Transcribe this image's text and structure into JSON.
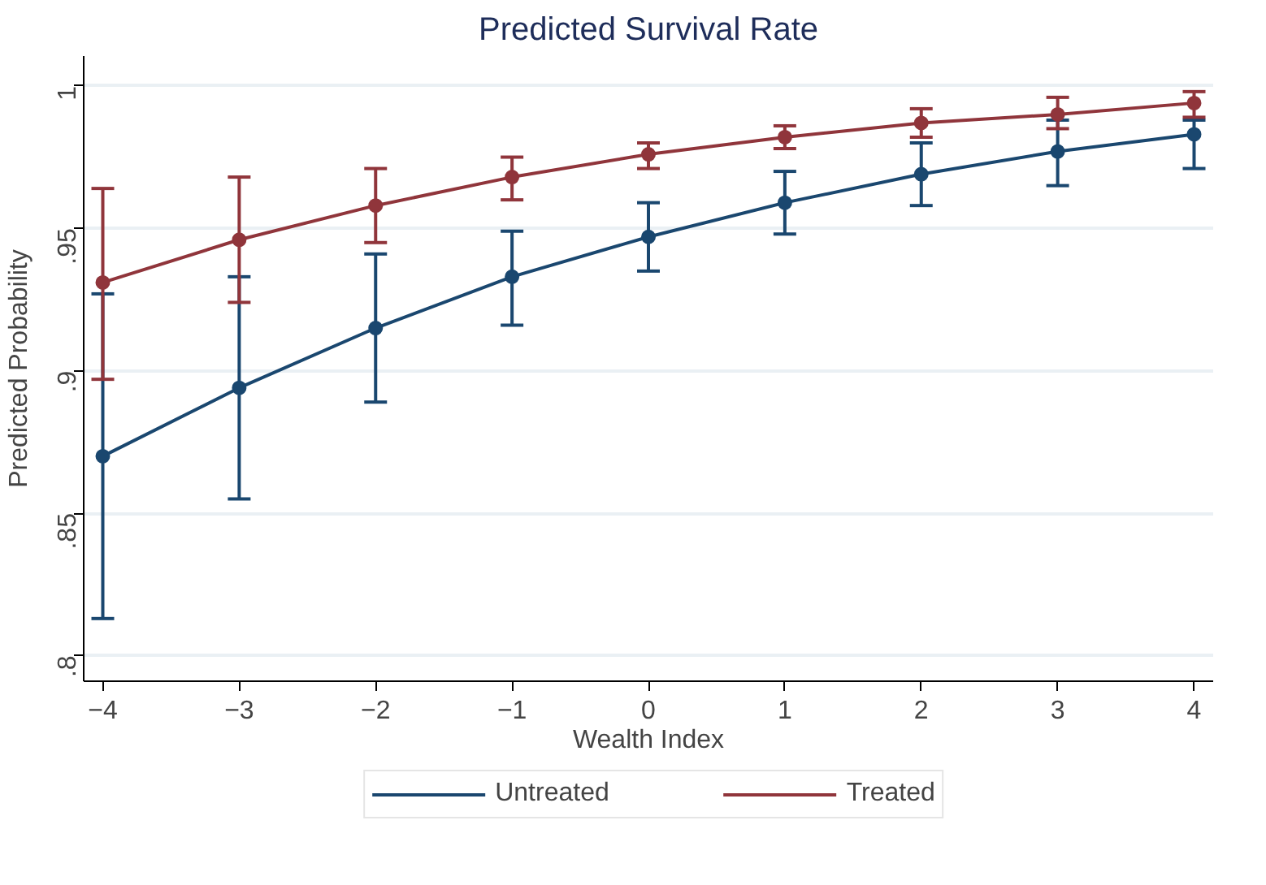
{
  "chart_data": {
    "type": "line",
    "title": "Predicted Survival Rate",
    "xlabel": "Wealth Index",
    "ylabel": "Predicted Probability",
    "x": [
      -4,
      -3,
      -2,
      -1,
      0,
      1,
      2,
      3,
      4
    ],
    "xlim": [
      -4.14,
      4.14
    ],
    "xticks": [
      -4,
      -3,
      -2,
      -1,
      0,
      1,
      2,
      3,
      4
    ],
    "ylim": [
      0.791,
      1.0105
    ],
    "yticks": [
      {
        "value": 0.8,
        "label": ".8"
      },
      {
        "value": 0.85,
        "label": ".85"
      },
      {
        "value": 0.9,
        "label": ".9"
      },
      {
        "value": 0.95,
        "label": ".95"
      },
      {
        "value": 1,
        "label": "1"
      }
    ],
    "grid": "y",
    "legend": "bottom",
    "marker": "circle",
    "line_style": "solid",
    "series": [
      {
        "name": "Untreated",
        "color": "#1a476f",
        "values": [
          0.87,
          0.894,
          0.915,
          0.933,
          0.947,
          0.959,
          0.969,
          0.977,
          0.983
        ],
        "errors": [
          [
            0.813,
            0.927
          ],
          [
            0.855,
            0.933
          ],
          [
            0.889,
            0.941
          ],
          [
            0.916,
            0.949
          ],
          [
            0.935,
            0.959
          ],
          [
            0.948,
            0.97
          ],
          [
            0.958,
            0.98
          ],
          [
            0.965,
            0.988
          ],
          [
            0.971,
            0.988
          ]
        ]
      },
      {
        "name": "Treated",
        "color": "#90353b",
        "values": [
          0.931,
          0.946,
          0.958,
          0.968,
          0.976,
          0.982,
          0.987,
          0.99,
          0.994
        ],
        "errors": [
          [
            0.897,
            0.964
          ],
          [
            0.924,
            0.968
          ],
          [
            0.945,
            0.971
          ],
          [
            0.96,
            0.975
          ],
          [
            0.971,
            0.98
          ],
          [
            0.978,
            0.986
          ],
          [
            0.982,
            0.992
          ],
          [
            0.985,
            0.996
          ],
          [
            0.989,
            0.998
          ]
        ]
      }
    ]
  }
}
